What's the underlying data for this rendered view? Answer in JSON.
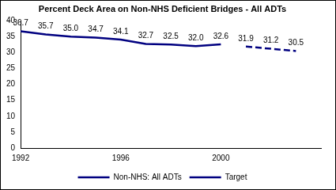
{
  "chart_data": {
    "type": "line",
    "title": "Percent Deck Area on Non-NHS Deficient Bridges - All ADTs",
    "x": [
      1992,
      1993,
      1994,
      1995,
      1996,
      1997,
      1998,
      1999,
      2000,
      2001,
      2002,
      2003
    ],
    "xlim": [
      1992,
      2004
    ],
    "xticks": [
      1992,
      1996,
      2000
    ],
    "ylim": [
      0,
      40
    ],
    "yticks": [
      0,
      5,
      10,
      15,
      20,
      25,
      30,
      35,
      40
    ],
    "grid": false,
    "legend": "bottom",
    "data_labels": true,
    "series": [
      {
        "name": "Non-NHS: All ADTs",
        "color": "#000080",
        "line_style": "solid",
        "values": [
          36.7,
          35.7,
          35.0,
          34.7,
          34.1,
          32.7,
          32.5,
          32.0,
          32.6,
          null,
          null,
          null
        ],
        "value_labels": [
          "36.7",
          "35.7",
          "35.0",
          "34.7",
          "34.1",
          "32.7",
          "32.5",
          "32.0",
          "32.6",
          null,
          null,
          null
        ]
      },
      {
        "name": "Target",
        "color": "#000080",
        "line_style": "dashed",
        "values": [
          null,
          null,
          null,
          null,
          null,
          null,
          null,
          null,
          null,
          31.9,
          31.2,
          30.5
        ],
        "value_labels": [
          null,
          null,
          null,
          null,
          null,
          null,
          null,
          null,
          null,
          "31.9",
          "31.2",
          "30.5"
        ]
      }
    ]
  }
}
